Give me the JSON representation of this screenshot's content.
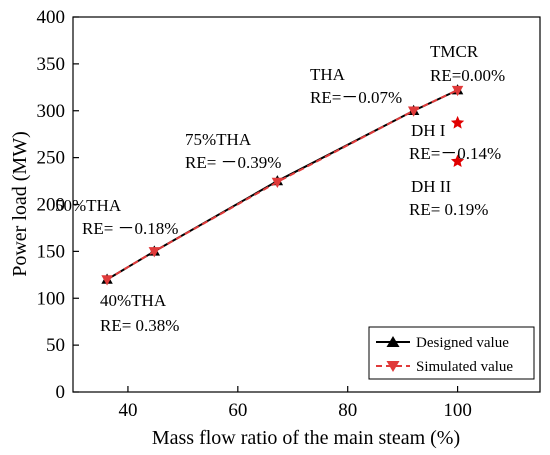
{
  "chart_data": {
    "type": "line",
    "xlabel": "Mass flow ratio of the main steam (%)",
    "ylabel": "Power load (MW)",
    "xlim": [
      30,
      115
    ],
    "ylim": [
      0,
      400
    ],
    "x_ticks": [
      40,
      60,
      80,
      100
    ],
    "y_ticks": [
      0,
      50,
      100,
      150,
      200,
      250,
      300,
      350,
      400
    ],
    "grid": false,
    "legend_position": "bottom-right",
    "colors": {
      "designed": "#000000",
      "simulated": "#e03a3a",
      "extra_points": "#e00000"
    },
    "series": [
      {
        "name": "Designed value",
        "marker": "triangle-up",
        "line": "solid",
        "x": [
          36.2,
          44.8,
          67.2,
          92.0,
          100.0
        ],
        "y": [
          120,
          150,
          225,
          300,
          322
        ]
      },
      {
        "name": "Simulated value",
        "marker": "triangle-down",
        "line": "dashed",
        "x": [
          36.2,
          44.8,
          67.2,
          92.0,
          100.0
        ],
        "y": [
          120,
          150,
          224,
          300,
          322
        ]
      }
    ],
    "extra_points": [
      {
        "x": 100.0,
        "y": 287
      },
      {
        "x": 100.0,
        "y": 246
      }
    ],
    "annotations": [
      {
        "name": "tmcr",
        "lines": [
          "TMCR",
          "RE=0.00%"
        ]
      },
      {
        "name": "tha",
        "lines": [
          "THA",
          "RE=－0.07%"
        ]
      },
      {
        "name": "75tha",
        "lines": [
          "75%THA",
          "RE= －0.39%"
        ]
      },
      {
        "name": "50tha",
        "lines": [
          "50%THA",
          "RE= －0.18%"
        ]
      },
      {
        "name": "40tha",
        "lines": [
          "40%THA",
          "RE= 0.38%"
        ]
      },
      {
        "name": "dh1",
        "lines": [
          "DH I",
          "RE=－0.14%"
        ]
      },
      {
        "name": "dh2",
        "lines": [
          "DH II",
          "RE= 0.19%"
        ]
      }
    ]
  }
}
